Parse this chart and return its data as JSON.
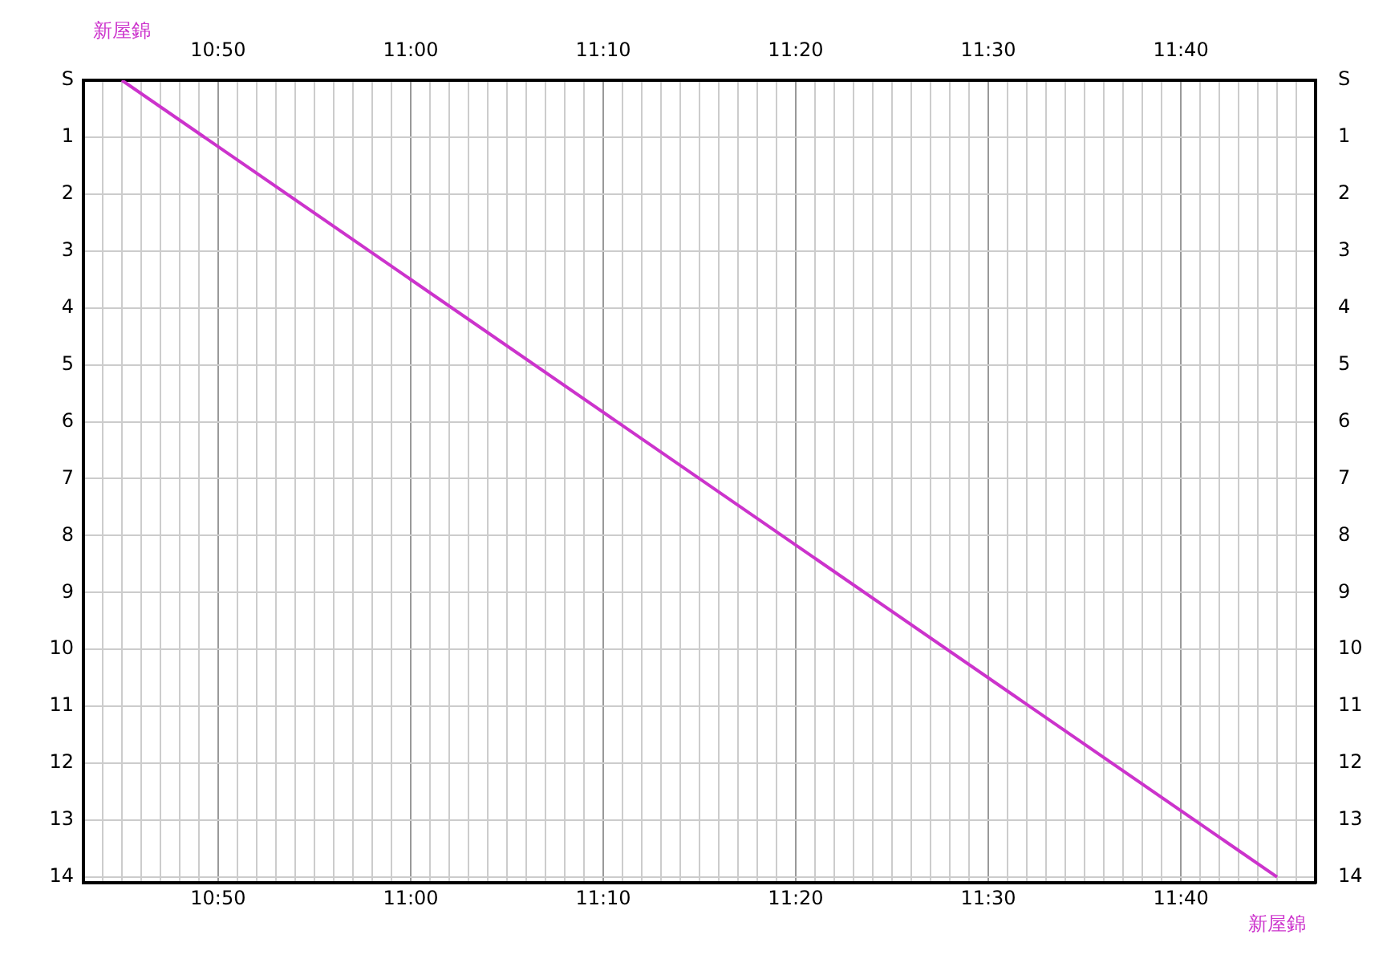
{
  "chart_data": {
    "type": "line",
    "series": [
      {
        "color": "#cc33cc",
        "x": [
          10.75,
          11.75
        ],
        "values": [
          0,
          14
        ]
      }
    ],
    "annotations": [
      {
        "text": "新屋錦",
        "x": 10.75,
        "y": 0
      },
      {
        "text": "新屋錦",
        "x": 11.75,
        "y": 14
      }
    ],
    "xlim": [
      10.7167,
      11.7833
    ],
    "xticks": [
      {
        "value": 10.7167,
        "label": null
      },
      {
        "value": 10.7333,
        "label": null
      },
      {
        "value": 10.75,
        "label": null
      },
      {
        "value": 10.7667,
        "label": null
      },
      {
        "value": 10.7833,
        "label": null
      },
      {
        "value": 10.8,
        "label": null
      },
      {
        "value": 10.8167,
        "label": null
      },
      {
        "value": 10.8333,
        "label": "10:50"
      },
      {
        "value": 10.85,
        "label": null
      },
      {
        "value": 10.8667,
        "label": null
      },
      {
        "value": 10.8833,
        "label": null
      },
      {
        "value": 10.9,
        "label": null
      },
      {
        "value": 10.9167,
        "label": null
      },
      {
        "value": 10.9333,
        "label": null
      },
      {
        "value": 10.95,
        "label": null
      },
      {
        "value": 10.9667,
        "label": null
      },
      {
        "value": 10.9833,
        "label": null
      },
      {
        "value": 11,
        "label": "11:00"
      },
      {
        "value": 11.0167,
        "label": null
      },
      {
        "value": 11.0333,
        "label": null
      },
      {
        "value": 11.05,
        "label": null
      },
      {
        "value": 11.0667,
        "label": null
      },
      {
        "value": 11.0833,
        "label": null
      },
      {
        "value": 11.1,
        "label": null
      },
      {
        "value": 11.1167,
        "label": null
      },
      {
        "value": 11.1333,
        "label": null
      },
      {
        "value": 11.15,
        "label": null
      },
      {
        "value": 11.1667,
        "label": "11:10"
      },
      {
        "value": 11.1833,
        "label": null
      },
      {
        "value": 11.2,
        "label": null
      },
      {
        "value": 11.2167,
        "label": null
      },
      {
        "value": 11.2333,
        "label": null
      },
      {
        "value": 11.25,
        "label": null
      },
      {
        "value": 11.2667,
        "label": null
      },
      {
        "value": 11.2833,
        "label": null
      },
      {
        "value": 11.3,
        "label": null
      },
      {
        "value": 11.3167,
        "label": null
      },
      {
        "value": 11.3333,
        "label": "11:20"
      },
      {
        "value": 11.35,
        "label": null
      },
      {
        "value": 11.3667,
        "label": null
      },
      {
        "value": 11.3833,
        "label": null
      },
      {
        "value": 11.4,
        "label": null
      },
      {
        "value": 11.4167,
        "label": null
      },
      {
        "value": 11.4333,
        "label": null
      },
      {
        "value": 11.45,
        "label": null
      },
      {
        "value": 11.4667,
        "label": null
      },
      {
        "value": 11.4833,
        "label": null
      },
      {
        "value": 11.5,
        "label": "11:30"
      },
      {
        "value": 11.5167,
        "label": null
      },
      {
        "value": 11.5333,
        "label": null
      },
      {
        "value": 11.55,
        "label": null
      },
      {
        "value": 11.5667,
        "label": null
      },
      {
        "value": 11.5833,
        "label": null
      },
      {
        "value": 11.6,
        "label": null
      },
      {
        "value": 11.6167,
        "label": null
      },
      {
        "value": 11.6333,
        "label": null
      },
      {
        "value": 11.65,
        "label": null
      },
      {
        "value": 11.6667,
        "label": "11:40"
      },
      {
        "value": 11.6833,
        "label": null
      },
      {
        "value": 11.7,
        "label": null
      },
      {
        "value": 11.7167,
        "label": null
      },
      {
        "value": 11.7333,
        "label": null
      },
      {
        "value": 11.75,
        "label": null
      },
      {
        "value": 11.7667,
        "label": null
      },
      {
        "value": 11.7833,
        "label": null
      }
    ],
    "x2lim": [
      10.7167,
      11.7833
    ],
    "x2ticks": [
      {
        "value": 10.8333,
        "label": "10:50"
      },
      {
        "value": 11,
        "label": "11:00"
      },
      {
        "value": 11.1667,
        "label": "11:10"
      },
      {
        "value": 11.3333,
        "label": "11:20"
      },
      {
        "value": 11.5,
        "label": "11:30"
      },
      {
        "value": 11.6667,
        "label": "11:40"
      }
    ],
    "ylim": [
      14.1,
      0
    ],
    "yticks": [
      {
        "value": 0,
        "label": "S"
      },
      1,
      2,
      3,
      4,
      5,
      6,
      7,
      8,
      9,
      10,
      11,
      12,
      13,
      14
    ],
    "y2lim": [
      14.1,
      0
    ],
    "y2ticks": [
      {
        "value": 0,
        "label": "S"
      },
      1,
      2,
      3,
      4,
      5,
      6,
      7,
      8,
      9,
      10,
      11,
      12,
      13,
      14
    ],
    "grid": true,
    "legend": false,
    "marker": "none",
    "line_style": "solid"
  }
}
